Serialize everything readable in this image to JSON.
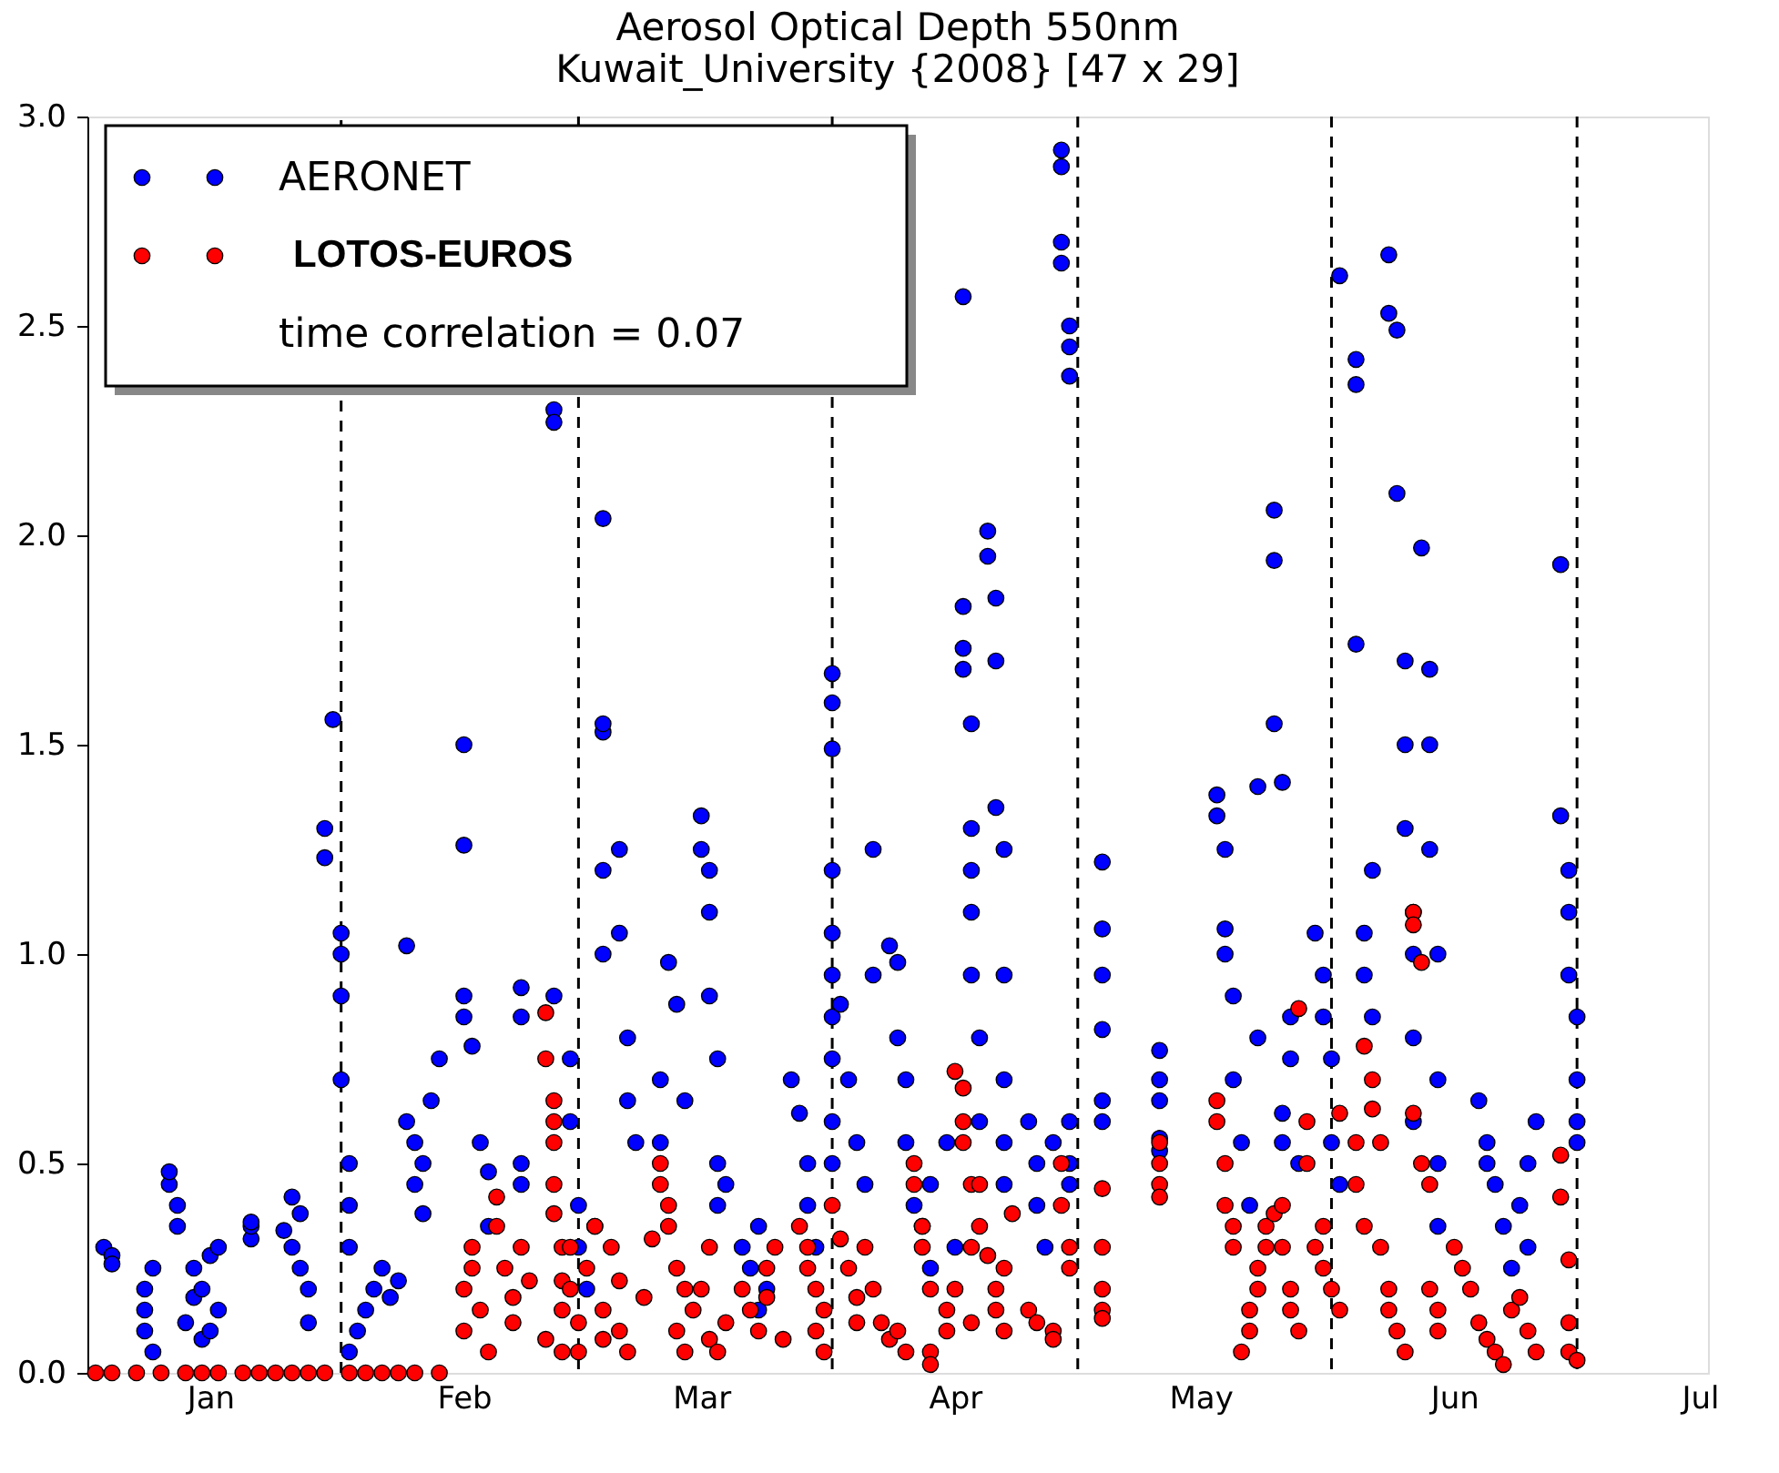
{
  "chart_data": {
    "type": "scatter",
    "title": "Aerosol Optical Depth 550nm",
    "subtitle": "Kuwait_University {2008} [47 x 29]",
    "xlim": [
      "2007-12-17",
      "2008-07-02"
    ],
    "ylim": [
      0,
      3
    ],
    "xticks": [
      {
        "value": "2008-01-01",
        "label": "Jan"
      },
      {
        "value": "2008-01-17",
        "label": null
      },
      {
        "value": "2008-02-01",
        "label": "Feb"
      },
      {
        "value": "2008-02-15",
        "label": null
      },
      {
        "value": "2008-03-01",
        "label": "Mar"
      },
      {
        "value": "2008-03-17",
        "label": null
      },
      {
        "value": "2008-04-01",
        "label": "Apr"
      },
      {
        "value": "2008-04-16",
        "label": null
      },
      {
        "value": "2008-05-01",
        "label": "May"
      },
      {
        "value": "2008-05-17",
        "label": null
      },
      {
        "value": "2008-06-01",
        "label": "Jun"
      },
      {
        "value": "2008-06-16",
        "label": null
      },
      {
        "value": "2008-07-01",
        "label": "Jul"
      }
    ],
    "yticks": [
      {
        "value": 0,
        "label": "0.0"
      },
      {
        "value": 0.5,
        "label": "0.5"
      },
      {
        "value": 1,
        "label": "1.0"
      },
      {
        "value": 1.5,
        "label": "1.5"
      },
      {
        "value": 2,
        "label": "2.0"
      },
      {
        "value": 2.5,
        "label": "2.5"
      },
      {
        "value": 3,
        "label": "3.0"
      }
    ],
    "grid": false,
    "legend": "top left",
    "marker": "circle",
    "annotations": [
      "time correlation = 0.07"
    ],
    "ref_lines": [
      {
        "axis": "x",
        "value": "2008-01-17",
        "color": "#000000",
        "line_style": "dashed"
      },
      {
        "axis": "x",
        "value": "2008-02-15",
        "color": "#000000",
        "line_style": "dashed"
      },
      {
        "axis": "x",
        "value": "2008-03-17",
        "color": "#000000",
        "line_style": "dashed"
      },
      {
        "axis": "x",
        "value": "2008-04-16",
        "color": "#000000",
        "line_style": "dashed"
      },
      {
        "axis": "x",
        "value": "2008-05-17",
        "color": "#000000",
        "line_style": "dashed"
      },
      {
        "axis": "x",
        "value": "2008-06-16",
        "color": "#000000",
        "line_style": "dashed"
      }
    ],
    "series": [
      {
        "name": "AERONET",
        "color": "#0000ff",
        "x": [
          "2007-12-19",
          "2007-12-20",
          "2007-12-20",
          "2007-12-24",
          "2007-12-24",
          "2007-12-24",
          "2007-12-25",
          "2007-12-25",
          "2007-12-27",
          "2007-12-27",
          "2007-12-28",
          "2007-12-28",
          "2007-12-29",
          "2007-12-30",
          "2007-12-30",
          "2007-12-31",
          "2007-12-31",
          "2008-01-01",
          "2008-01-01",
          "2008-01-02",
          "2008-01-02",
          "2008-01-06",
          "2008-01-06",
          "2008-01-06",
          "2008-01-10",
          "2008-01-11",
          "2008-01-11",
          "2008-01-12",
          "2008-01-12",
          "2008-01-13",
          "2008-01-13",
          "2008-01-15",
          "2008-01-15",
          "2008-01-16",
          "2008-01-17",
          "2008-01-17",
          "2008-01-17",
          "2008-01-17",
          "2008-01-18",
          "2008-01-18",
          "2008-01-18",
          "2008-01-18",
          "2008-01-19",
          "2008-01-20",
          "2008-01-21",
          "2008-01-22",
          "2008-01-23",
          "2008-01-24",
          "2008-01-25",
          "2008-01-25",
          "2008-01-26",
          "2008-01-26",
          "2008-01-27",
          "2008-01-27",
          "2008-01-28",
          "2008-01-29",
          "2008-02-01",
          "2008-02-01",
          "2008-02-01",
          "2008-02-01",
          "2008-02-02",
          "2008-02-03",
          "2008-02-04",
          "2008-02-04",
          "2008-02-08",
          "2008-02-08",
          "2008-02-08",
          "2008-02-08",
          "2008-02-12",
          "2008-02-12",
          "2008-02-12",
          "2008-02-14",
          "2008-02-14",
          "2008-02-15",
          "2008-02-15",
          "2008-02-16",
          "2008-02-17",
          "2008-02-18",
          "2008-02-18",
          "2008-02-18",
          "2008-02-18",
          "2008-02-18",
          "2008-02-20",
          "2008-02-20",
          "2008-02-21",
          "2008-02-21",
          "2008-02-22",
          "2008-02-25",
          "2008-02-25",
          "2008-02-26",
          "2008-02-27",
          "2008-02-28",
          "2008-03-01",
          "2008-03-01",
          "2008-03-02",
          "2008-03-02",
          "2008-03-02",
          "2008-03-03",
          "2008-03-03",
          "2008-03-03",
          "2008-03-04",
          "2008-03-06",
          "2008-03-07",
          "2008-03-08",
          "2008-03-08",
          "2008-03-09",
          "2008-03-12",
          "2008-03-13",
          "2008-03-14",
          "2008-03-14",
          "2008-03-15",
          "2008-03-17",
          "2008-03-17",
          "2008-03-17",
          "2008-03-17",
          "2008-03-17",
          "2008-03-17",
          "2008-03-17",
          "2008-03-17",
          "2008-03-17",
          "2008-03-17",
          "2008-03-18",
          "2008-03-19",
          "2008-03-20",
          "2008-03-21",
          "2008-03-22",
          "2008-03-22",
          "2008-03-24",
          "2008-03-25",
          "2008-03-25",
          "2008-03-26",
          "2008-03-26",
          "2008-03-27",
          "2008-03-28",
          "2008-03-29",
          "2008-03-29",
          "2008-03-31",
          "2008-04-01",
          "2008-04-02",
          "2008-04-02",
          "2008-04-02",
          "2008-04-02",
          "2008-04-03",
          "2008-04-03",
          "2008-04-03",
          "2008-04-03",
          "2008-04-03",
          "2008-04-04",
          "2008-04-04",
          "2008-04-05",
          "2008-04-05",
          "2008-04-06",
          "2008-04-06",
          "2008-04-06",
          "2008-04-07",
          "2008-04-07",
          "2008-04-07",
          "2008-04-07",
          "2008-04-07",
          "2008-04-10",
          "2008-04-11",
          "2008-04-11",
          "2008-04-12",
          "2008-04-13",
          "2008-04-14",
          "2008-04-14",
          "2008-04-14",
          "2008-04-14",
          "2008-04-15",
          "2008-04-15",
          "2008-04-15",
          "2008-04-15",
          "2008-04-15",
          "2008-04-15",
          "2008-04-19",
          "2008-04-19",
          "2008-04-19",
          "2008-04-19",
          "2008-04-19",
          "2008-04-19",
          "2008-04-26",
          "2008-04-26",
          "2008-04-26",
          "2008-04-26",
          "2008-04-26",
          "2008-05-03",
          "2008-05-03",
          "2008-05-04",
          "2008-05-04",
          "2008-05-04",
          "2008-05-05",
          "2008-05-05",
          "2008-05-06",
          "2008-05-07",
          "2008-05-08",
          "2008-05-08",
          "2008-05-10",
          "2008-05-10",
          "2008-05-10",
          "2008-05-11",
          "2008-05-11",
          "2008-05-11",
          "2008-05-12",
          "2008-05-12",
          "2008-05-13",
          "2008-05-15",
          "2008-05-16",
          "2008-05-16",
          "2008-05-17",
          "2008-05-17",
          "2008-05-18",
          "2008-05-18",
          "2008-05-20",
          "2008-05-20",
          "2008-05-20",
          "2008-05-21",
          "2008-05-21",
          "2008-05-22",
          "2008-05-22",
          "2008-05-24",
          "2008-05-24",
          "2008-05-25",
          "2008-05-25",
          "2008-05-26",
          "2008-05-26",
          "2008-05-26",
          "2008-05-27",
          "2008-05-27",
          "2008-05-27",
          "2008-05-27",
          "2008-05-28",
          "2008-05-29",
          "2008-05-29",
          "2008-05-29",
          "2008-05-30",
          "2008-05-30",
          "2008-05-30",
          "2008-05-30",
          "2008-06-04",
          "2008-06-05",
          "2008-06-05",
          "2008-06-06",
          "2008-06-07",
          "2008-06-08",
          "2008-06-09",
          "2008-06-10",
          "2008-06-10",
          "2008-06-11",
          "2008-06-14",
          "2008-06-14",
          "2008-06-15",
          "2008-06-15",
          "2008-06-15",
          "2008-06-16",
          "2008-06-16",
          "2008-06-16",
          "2008-06-16"
        ],
        "values": [
          0.3,
          0.28,
          0.26,
          0.1,
          0.15,
          0.2,
          0.25,
          0.05,
          0.45,
          0.48,
          0.4,
          0.35,
          0.12,
          0.18,
          0.25,
          0.08,
          0.2,
          0.1,
          0.28,
          0.15,
          0.3,
          0.32,
          0.35,
          0.36,
          0.34,
          0.3,
          0.42,
          0.38,
          0.25,
          0.2,
          0.12,
          1.3,
          1.23,
          1.56,
          1.05,
          1.0,
          0.9,
          0.7,
          0.5,
          0.4,
          0.3,
          0.05,
          0.1,
          0.15,
          0.2,
          0.25,
          0.18,
          0.22,
          1.02,
          0.6,
          0.55,
          0.45,
          0.38,
          0.5,
          0.65,
          0.75,
          1.5,
          1.26,
          0.9,
          0.85,
          0.78,
          0.55,
          0.48,
          0.35,
          0.92,
          0.85,
          0.5,
          0.45,
          2.3,
          2.27,
          0.9,
          0.75,
          0.6,
          0.4,
          0.3,
          0.2,
          0.35,
          2.04,
          1.53,
          1.55,
          1.2,
          1.0,
          1.25,
          1.05,
          0.8,
          0.65,
          0.55,
          0.7,
          0.55,
          0.98,
          0.88,
          0.65,
          1.33,
          1.25,
          1.2,
          1.1,
          0.9,
          0.75,
          0.5,
          0.4,
          0.45,
          0.3,
          0.25,
          0.15,
          0.35,
          0.2,
          0.7,
          0.62,
          0.5,
          0.4,
          0.3,
          1.67,
          1.6,
          1.49,
          1.2,
          1.05,
          0.95,
          0.85,
          0.75,
          0.6,
          0.5,
          0.88,
          0.7,
          0.55,
          0.45,
          1.25,
          0.95,
          1.02,
          0.98,
          0.8,
          0.7,
          0.55,
          0.4,
          0.35,
          0.25,
          0.45,
          0.55,
          0.3,
          2.57,
          1.83,
          1.73,
          1.68,
          1.55,
          1.3,
          1.2,
          1.1,
          0.95,
          0.8,
          0.6,
          2.01,
          1.95,
          1.85,
          1.7,
          1.35,
          1.25,
          0.95,
          0.7,
          0.55,
          0.45,
          0.6,
          0.5,
          0.4,
          0.3,
          0.55,
          2.92,
          2.88,
          2.7,
          2.65,
          2.5,
          2.45,
          2.38,
          0.6,
          0.5,
          0.45,
          1.22,
          1.06,
          0.95,
          0.82,
          0.65,
          0.6,
          0.77,
          0.7,
          0.65,
          0.56,
          0.53,
          1.38,
          1.33,
          1.25,
          1.06,
          1.0,
          0.9,
          0.7,
          0.55,
          0.4,
          1.4,
          0.8,
          2.06,
          1.94,
          1.55,
          1.41,
          0.62,
          0.55,
          0.75,
          0.85,
          0.5,
          1.05,
          0.95,
          0.85,
          0.75,
          0.55,
          0.45,
          2.62,
          2.42,
          2.36,
          1.74,
          1.05,
          0.95,
          0.85,
          1.2,
          2.67,
          2.53,
          2.49,
          2.1,
          1.7,
          1.5,
          1.3,
          1.1,
          1.0,
          0.8,
          0.6,
          1.97,
          1.68,
          1.5,
          1.25,
          1.0,
          0.7,
          0.5,
          0.35,
          0.65,
          0.55,
          0.5,
          0.45,
          0.35,
          0.25,
          0.4,
          0.5,
          0.3,
          0.6,
          1.93,
          1.33,
          1.2,
          1.1,
          0.95,
          0.85,
          0.7,
          0.55,
          0.6
        ]
      },
      {
        "name": "LOTOS-EUROS",
        "color": "#ff0000",
        "x": [
          "2007-12-18",
          "2007-12-20",
          "2007-12-23",
          "2007-12-26",
          "2007-12-29",
          "2007-12-31",
          "2008-01-02",
          "2008-01-05",
          "2008-01-07",
          "2008-01-09",
          "2008-01-11",
          "2008-01-13",
          "2008-01-15",
          "2008-01-18",
          "2008-01-20",
          "2008-01-22",
          "2008-01-24",
          "2008-01-26",
          "2008-01-29",
          "2008-02-01",
          "2008-02-01",
          "2008-02-02",
          "2008-02-02",
          "2008-02-03",
          "2008-02-04",
          "2008-02-05",
          "2008-02-05",
          "2008-02-06",
          "2008-02-07",
          "2008-02-07",
          "2008-02-08",
          "2008-02-09",
          "2008-02-11",
          "2008-02-11",
          "2008-02-11",
          "2008-02-12",
          "2008-02-12",
          "2008-02-12",
          "2008-02-12",
          "2008-02-12",
          "2008-02-13",
          "2008-02-13",
          "2008-02-13",
          "2008-02-13",
          "2008-02-14",
          "2008-02-14",
          "2008-02-15",
          "2008-02-15",
          "2008-02-16",
          "2008-02-17",
          "2008-02-18",
          "2008-02-18",
          "2008-02-19",
          "2008-02-20",
          "2008-02-20",
          "2008-02-21",
          "2008-02-23",
          "2008-02-24",
          "2008-02-25",
          "2008-02-25",
          "2008-02-26",
          "2008-02-26",
          "2008-02-27",
          "2008-02-27",
          "2008-02-28",
          "2008-02-28",
          "2008-02-29",
          "2008-03-01",
          "2008-03-02",
          "2008-03-02",
          "2008-03-03",
          "2008-03-04",
          "2008-03-06",
          "2008-03-07",
          "2008-03-08",
          "2008-03-09",
          "2008-03-09",
          "2008-03-10",
          "2008-03-11",
          "2008-03-13",
          "2008-03-14",
          "2008-03-14",
          "2008-03-15",
          "2008-03-15",
          "2008-03-16",
          "2008-03-16",
          "2008-03-17",
          "2008-03-18",
          "2008-03-19",
          "2008-03-20",
          "2008-03-20",
          "2008-03-21",
          "2008-03-22",
          "2008-03-23",
          "2008-03-24",
          "2008-03-25",
          "2008-03-26",
          "2008-03-27",
          "2008-03-27",
          "2008-03-28",
          "2008-03-28",
          "2008-03-29",
          "2008-03-29",
          "2008-03-29",
          "2008-03-31",
          "2008-03-31",
          "2008-04-01",
          "2008-04-01",
          "2008-04-02",
          "2008-04-02",
          "2008-04-02",
          "2008-04-03",
          "2008-04-03",
          "2008-04-03",
          "2008-04-04",
          "2008-04-04",
          "2008-04-05",
          "2008-04-06",
          "2008-04-06",
          "2008-04-07",
          "2008-04-07",
          "2008-04-08",
          "2008-04-10",
          "2008-04-11",
          "2008-04-13",
          "2008-04-13",
          "2008-04-14",
          "2008-04-14",
          "2008-04-15",
          "2008-04-15",
          "2008-04-19",
          "2008-04-19",
          "2008-04-19",
          "2008-04-19",
          "2008-04-19",
          "2008-04-26",
          "2008-04-26",
          "2008-04-26",
          "2008-04-26",
          "2008-05-03",
          "2008-05-03",
          "2008-05-04",
          "2008-05-04",
          "2008-05-05",
          "2008-05-05",
          "2008-05-06",
          "2008-05-07",
          "2008-05-07",
          "2008-05-08",
          "2008-05-08",
          "2008-05-09",
          "2008-05-09",
          "2008-05-10",
          "2008-05-11",
          "2008-05-11",
          "2008-05-12",
          "2008-05-12",
          "2008-05-13",
          "2008-05-13",
          "2008-05-14",
          "2008-05-14",
          "2008-05-15",
          "2008-05-16",
          "2008-05-16",
          "2008-05-17",
          "2008-05-18",
          "2008-05-18",
          "2008-05-20",
          "2008-05-20",
          "2008-05-21",
          "2008-05-21",
          "2008-05-22",
          "2008-05-22",
          "2008-05-23",
          "2008-05-23",
          "2008-05-24",
          "2008-05-24",
          "2008-05-25",
          "2008-05-26",
          "2008-05-27",
          "2008-05-27",
          "2008-05-27",
          "2008-05-28",
          "2008-05-28",
          "2008-05-29",
          "2008-05-29",
          "2008-05-30",
          "2008-05-30",
          "2008-06-01",
          "2008-06-02",
          "2008-06-03",
          "2008-06-04",
          "2008-06-05",
          "2008-06-06",
          "2008-06-07",
          "2008-06-08",
          "2008-06-09",
          "2008-06-10",
          "2008-06-11",
          "2008-06-14",
          "2008-06-14",
          "2008-06-15",
          "2008-06-15",
          "2008-06-15",
          "2008-06-16"
        ],
        "values": [
          0,
          0,
          0,
          0,
          0,
          0,
          0,
          0,
          0,
          0,
          0,
          0,
          0,
          0,
          0,
          0,
          0,
          0,
          0,
          0.1,
          0.2,
          0.3,
          0.25,
          0.15,
          0.05,
          0.42,
          0.35,
          0.25,
          0.18,
          0.12,
          0.3,
          0.22,
          0.08,
          0.86,
          0.75,
          0.65,
          0.6,
          0.55,
          0.45,
          0.38,
          0.3,
          0.22,
          0.15,
          0.05,
          0.3,
          0.2,
          0.12,
          0.05,
          0.25,
          0.35,
          0.15,
          0.08,
          0.3,
          0.22,
          0.1,
          0.05,
          0.18,
          0.32,
          0.5,
          0.45,
          0.4,
          0.35,
          0.25,
          0.1,
          0.05,
          0.2,
          0.15,
          0.2,
          0.08,
          0.3,
          0.05,
          0.12,
          0.2,
          0.15,
          0.1,
          0.25,
          0.18,
          0.3,
          0.08,
          0.35,
          0.3,
          0.25,
          0.2,
          0.1,
          0.15,
          0.05,
          0.4,
          0.32,
          0.25,
          0.18,
          0.12,
          0.3,
          0.2,
          0.12,
          0.08,
          0.1,
          0.05,
          0.5,
          0.45,
          0.35,
          0.3,
          0.2,
          0.05,
          0.02,
          0.1,
          0.15,
          0.2,
          0.72,
          0.68,
          0.6,
          0.55,
          0.45,
          0.3,
          0.12,
          0.45,
          0.35,
          0.28,
          0.2,
          0.15,
          0.1,
          0.25,
          0.38,
          0.15,
          0.12,
          0.1,
          0.08,
          0.5,
          0.4,
          0.3,
          0.25,
          0.44,
          0.3,
          0.2,
          0.15,
          0.13,
          0.55,
          0.5,
          0.45,
          0.42,
          0.65,
          0.6,
          0.5,
          0.4,
          0.3,
          0.35,
          0.05,
          0.1,
          0.15,
          0.2,
          0.25,
          0.3,
          0.35,
          0.38,
          0.4,
          0.3,
          0.2,
          0.15,
          0.1,
          0.87,
          0.6,
          0.5,
          0.3,
          0.35,
          0.25,
          0.2,
          0.15,
          0.62,
          0.55,
          0.45,
          0.35,
          0.78,
          0.7,
          0.63,
          0.55,
          0.3,
          0.2,
          0.15,
          0.1,
          0.05,
          0.62,
          1.1,
          1.07,
          0.98,
          0.5,
          0.45,
          0.2,
          0.15,
          0.1,
          0.3,
          0.25,
          0.2,
          0.12,
          0.08,
          0.05,
          0.02,
          0.15,
          0.18,
          0.1,
          0.05,
          0.52,
          0.42,
          0.27,
          0.12,
          0.05,
          0.03
        ]
      }
    ]
  }
}
